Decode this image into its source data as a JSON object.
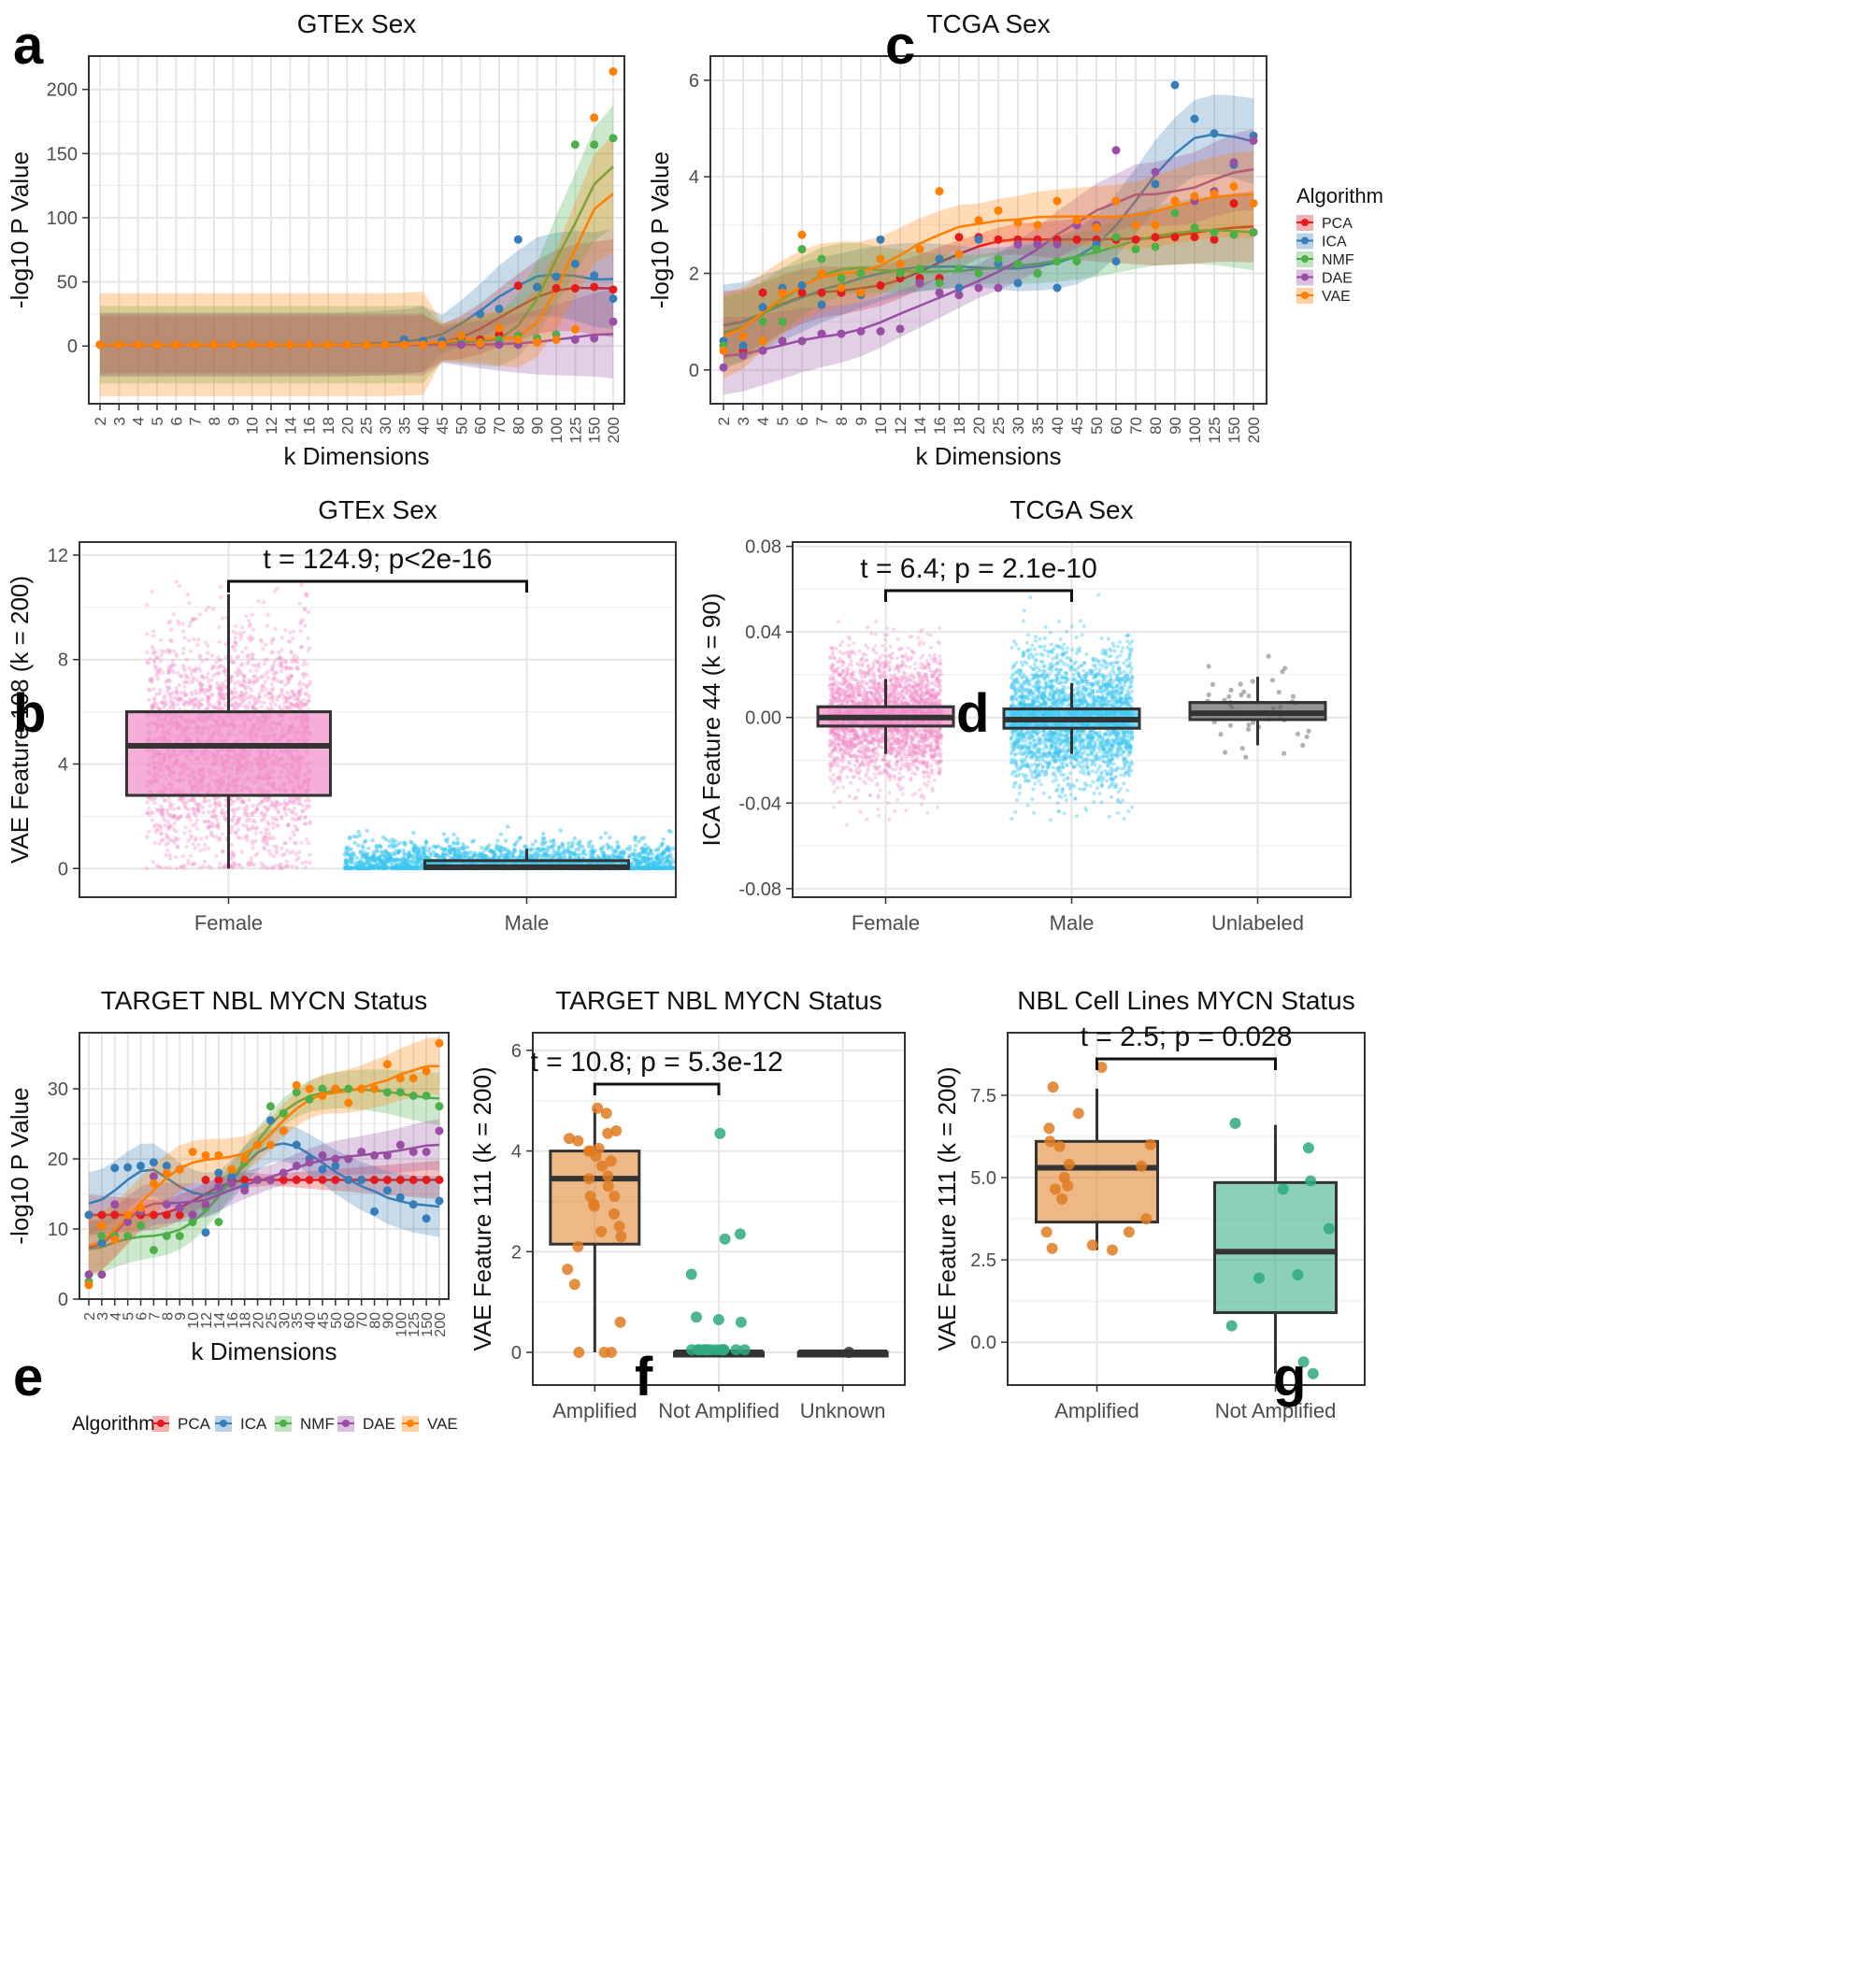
{
  "algorithms": [
    {
      "name": "PCA",
      "color": "#e41a1c"
    },
    {
      "name": "ICA",
      "color": "#377eb8"
    },
    {
      "name": "NMF",
      "color": "#4daf4a"
    },
    {
      "name": "DAE",
      "color": "#984ea3"
    },
    {
      "name": "VAE",
      "color": "#ff7f00"
    }
  ],
  "group_colors": {
    "female": "#f28cc9",
    "male": "#3cc6f0",
    "unlabeled": "#666666",
    "amplified": "#e07b22",
    "not_amplified": "#2ea982",
    "unknown": "#333333"
  },
  "panel_labels": {
    "a": "a",
    "b": "b",
    "c": "c",
    "d": "d",
    "e": "e",
    "f": "f",
    "g": "g"
  },
  "legend_title": "Algorithm",
  "chart_data": [
    {
      "id": "a",
      "type": "scatter",
      "title": "GTEx Sex",
      "xlabel": "k Dimensions",
      "ylabel": "-log10 P Value",
      "ylim": [
        -45,
        226
      ],
      "yticks": [
        0,
        50,
        100,
        150,
        200
      ],
      "grid": true,
      "categories": [
        "2",
        "3",
        "4",
        "5",
        "6",
        "7",
        "8",
        "9",
        "10",
        "12",
        "14",
        "16",
        "18",
        "20",
        "25",
        "30",
        "35",
        "40",
        "45",
        "50",
        "60",
        "70",
        "80",
        "90",
        "100",
        "125",
        "150",
        "200"
      ],
      "series": [
        {
          "name": "PCA",
          "values": [
            1,
            1,
            1,
            1,
            1,
            1,
            1,
            1,
            1,
            1,
            1,
            1,
            1,
            1,
            1,
            1,
            1,
            1,
            1,
            5,
            5,
            9,
            47,
            46,
            45,
            45,
            46,
            44
          ]
        },
        {
          "name": "ICA",
          "values": [
            1,
            1,
            1,
            1,
            1,
            1,
            1,
            1,
            1,
            1,
            1,
            1,
            1,
            1,
            1,
            1,
            5,
            4,
            4,
            8,
            25,
            29,
            83,
            46,
            54,
            64,
            55,
            37
          ]
        },
        {
          "name": "NMF",
          "values": [
            1,
            1,
            1,
            1,
            1,
            1,
            1,
            1,
            1,
            1,
            1,
            1,
            1,
            1,
            1,
            1,
            1,
            1,
            1,
            3,
            3,
            5,
            8,
            6,
            9,
            157,
            157,
            162
          ]
        },
        {
          "name": "DAE",
          "values": [
            1,
            1,
            1,
            1,
            1,
            1,
            1,
            1,
            1,
            1,
            1,
            1,
            1,
            1,
            1,
            1,
            1,
            1,
            1,
            1,
            1,
            1,
            1,
            3,
            5,
            5,
            6,
            19
          ]
        },
        {
          "name": "VAE",
          "values": [
            1,
            1,
            1,
            1,
            1,
            1,
            1,
            1,
            1,
            1,
            1,
            1,
            1,
            1,
            1,
            1,
            1,
            1,
            1,
            8,
            2,
            14,
            5,
            3,
            5,
            13,
            178,
            214
          ]
        }
      ]
    },
    {
      "id": "c",
      "type": "scatter",
      "title": "TCGA Sex",
      "xlabel": "k Dimensions",
      "ylabel": "-log10 P Value",
      "ylim": [
        -0.7,
        6.5
      ],
      "yticks": [
        0,
        2,
        4,
        6
      ],
      "grid": true,
      "categories": [
        "2",
        "3",
        "4",
        "5",
        "6",
        "7",
        "8",
        "9",
        "10",
        "12",
        "14",
        "16",
        "18",
        "20",
        "25",
        "30",
        "35",
        "40",
        "45",
        "50",
        "60",
        "70",
        "80",
        "90",
        "100",
        "125",
        "150",
        "200"
      ],
      "series": [
        {
          "name": "PCA",
          "values": [
            0.5,
            0.4,
            1.6,
            1.6,
            1.6,
            1.6,
            1.6,
            1.6,
            1.75,
            1.9,
            1.9,
            1.9,
            2.75,
            2.75,
            2.7,
            2.7,
            2.7,
            2.7,
            2.7,
            2.7,
            2.7,
            2.7,
            2.75,
            2.75,
            2.75,
            2.7,
            3.45,
            2.85
          ]
        },
        {
          "name": "ICA",
          "values": [
            0.6,
            0.5,
            1.3,
            1.7,
            1.75,
            1.35,
            1.7,
            1.55,
            2.7,
            2.2,
            1.8,
            2.3,
            1.7,
            2.7,
            2.2,
            1.8,
            2.0,
            1.7,
            3.0,
            2.6,
            2.25,
            3.0,
            3.85,
            5.9,
            5.2,
            4.9,
            4.25,
            4.85
          ]
        },
        {
          "name": "NMF",
          "values": [
            0.5,
            0.7,
            1.0,
            1.0,
            2.5,
            2.3,
            1.9,
            2.0,
            2.3,
            2.0,
            2.1,
            1.8,
            2.1,
            2.0,
            2.3,
            2.2,
            2.0,
            2.25,
            2.25,
            2.5,
            2.75,
            2.5,
            2.55,
            3.25,
            2.95,
            2.85,
            2.8,
            2.85
          ]
        },
        {
          "name": "DAE",
          "values": [
            0.05,
            0.3,
            0.4,
            0.6,
            0.6,
            0.75,
            0.75,
            0.8,
            0.8,
            0.85,
            1.8,
            1.6,
            1.55,
            1.7,
            1.7,
            2.6,
            2.6,
            2.6,
            3.0,
            3.0,
            4.55,
            3.0,
            4.1,
            3.5,
            3.5,
            3.7,
            4.3,
            4.75
          ]
        },
        {
          "name": "VAE",
          "values": [
            0.4,
            0.7,
            0.6,
            1.6,
            2.8,
            2.0,
            1.7,
            1.6,
            2.3,
            2.2,
            2.5,
            3.7,
            2.4,
            3.1,
            3.3,
            3.05,
            3.0,
            3.5,
            3.1,
            2.95,
            3.5,
            3.0,
            3.0,
            3.5,
            3.6,
            3.65,
            3.8,
            3.45
          ]
        }
      ]
    },
    {
      "id": "b",
      "type": "box",
      "title": "GTEx Sex",
      "ylabel": "VAE Feature 108 (k = 200)",
      "categories": [
        "Female",
        "Male"
      ],
      "ylim": [
        -1.1,
        12.5
      ],
      "yticks": [
        0,
        4,
        8,
        12
      ],
      "grid": true,
      "boxes": [
        {
          "group": "Female",
          "min": 0,
          "q1": 2.8,
          "median": 4.7,
          "q3": 6.0,
          "max": 10.5,
          "point_max": 11.0
        },
        {
          "group": "Male",
          "min": 0,
          "q1": 0,
          "median": 0.05,
          "q3": 0.3,
          "max": 0.75,
          "point_max": 3.1
        }
      ],
      "annotation": "t = 124.9; p<2e-16"
    },
    {
      "id": "d",
      "type": "box",
      "title": "TCGA Sex",
      "ylabel": "ICA Feature 44 (k = 90)",
      "categories": [
        "Female",
        "Male",
        "Unlabeled"
      ],
      "ylim": [
        -0.084,
        0.082
      ],
      "yticks": [
        -0.08,
        -0.04,
        0.0,
        0.04,
        0.08
      ],
      "yticklabels": [
        "-0.08",
        "-0.04",
        "0.00",
        "0.04",
        "0.08"
      ],
      "grid": true,
      "boxes": [
        {
          "group": "Female",
          "min": -0.017,
          "q1": -0.004,
          "median": 0.0,
          "q3": 0.005,
          "max": 0.018,
          "point_min": -0.06,
          "point_max": 0.053
        },
        {
          "group": "Male",
          "min": -0.017,
          "q1": -0.005,
          "median": -0.001,
          "q3": 0.004,
          "max": 0.016,
          "point_min": -0.048,
          "point_max": 0.06
        },
        {
          "group": "Unlabeled",
          "min": -0.013,
          "q1": -0.001,
          "median": 0.002,
          "q3": 0.007,
          "max": 0.019,
          "point_min": -0.019,
          "point_max": 0.036
        }
      ],
      "annotation": "t = 6.4; p = 2.1e-10"
    },
    {
      "id": "e",
      "type": "scatter",
      "title": "TARGET NBL MYCN Status",
      "xlabel": "k Dimensions",
      "ylabel": "-log10 P Value",
      "ylim": [
        0,
        38
      ],
      "yticks": [
        0,
        10,
        20,
        30
      ],
      "grid": true,
      "categories": [
        "2",
        "3",
        "4",
        "5",
        "6",
        "7",
        "8",
        "9",
        "10",
        "12",
        "14",
        "16",
        "18",
        "20",
        "25",
        "30",
        "35",
        "40",
        "45",
        "50",
        "60",
        "70",
        "80",
        "90",
        "100",
        "125",
        "150",
        "200"
      ],
      "series": [
        {
          "name": "PCA",
          "values": [
            12,
            12,
            12,
            12,
            12,
            12,
            12,
            12,
            12,
            17,
            17,
            17,
            17,
            17,
            17,
            17,
            17,
            17,
            17,
            17,
            17,
            17,
            17,
            17,
            17,
            17,
            17,
            17
          ]
        },
        {
          "name": "ICA",
          "values": [
            12,
            8,
            18.7,
            18.8,
            19,
            19.5,
            19,
            18.5,
            11,
            9.5,
            18,
            17.5,
            16,
            22,
            25.5,
            24,
            22,
            20,
            18.5,
            19,
            17,
            17,
            12.5,
            15.5,
            14.5,
            13.5,
            11.5,
            14
          ]
        },
        {
          "name": "NMF",
          "values": [
            2.5,
            9,
            9,
            9,
            10.5,
            7,
            9,
            9,
            11,
            13,
            11,
            18.5,
            19.5,
            22,
            27.5,
            26.5,
            29.5,
            28.5,
            30,
            30,
            30,
            30,
            30,
            29.5,
            29.5,
            29,
            29,
            27.5
          ]
        },
        {
          "name": "DAE",
          "values": [
            3.5,
            3.5,
            13.5,
            11,
            12.5,
            17.5,
            13.5,
            13,
            12,
            13.5,
            16,
            16.5,
            15.5,
            17,
            17,
            18,
            19,
            19.5,
            20.5,
            20,
            20,
            21,
            20.5,
            20.5,
            22,
            21,
            21,
            24
          ]
        },
        {
          "name": "VAE",
          "values": [
            2,
            10.5,
            8.5,
            12,
            13,
            16.5,
            18,
            18.5,
            21,
            20.5,
            20.5,
            18.5,
            20,
            22,
            22,
            24,
            30.5,
            30,
            29,
            30,
            28,
            30,
            30,
            33.5,
            31.5,
            31.5,
            32.5,
            36.5
          ]
        }
      ]
    },
    {
      "id": "f",
      "type": "box",
      "title": "TARGET NBL MYCN Status",
      "ylabel": "VAE Feature 111 (k = 200)",
      "categories": [
        "Amplified",
        "Not Amplified",
        "Unknown"
      ],
      "ylim": [
        -0.65,
        6.35
      ],
      "yticks": [
        0,
        2,
        4,
        6
      ],
      "grid": true,
      "boxes": [
        {
          "group": "Amplified",
          "min": 0,
          "q1": 2.15,
          "median": 3.45,
          "q3": 4.0,
          "max": 4.85
        },
        {
          "group": "Not Amplified",
          "min": 0,
          "q1": 0,
          "median": 0,
          "q3": 0,
          "max": 0
        },
        {
          "group": "Unknown",
          "min": 0,
          "q1": 0,
          "median": 0,
          "q3": 0,
          "max": 0
        }
      ],
      "points": [
        {
          "group": "Amplified",
          "values": [
            4.85,
            4.75,
            4.4,
            4.35,
            4.25,
            4.2,
            4.05,
            4.0,
            4.0,
            3.9,
            3.8,
            3.7,
            3.5,
            3.45,
            3.3,
            3.1,
            3.1,
            2.95,
            2.9,
            2.75,
            2.5,
            2.4,
            2.3,
            2.1,
            1.65,
            1.35,
            0.6,
            0,
            0,
            0
          ]
        },
        {
          "group": "Not Amplified",
          "values": [
            4.35,
            2.35,
            2.25,
            1.55,
            0.7,
            0.65,
            0.6,
            0.05,
            0.05,
            0.05,
            0.05,
            0.05,
            0.05,
            0.05,
            0.05,
            0.05,
            0.05,
            0.05,
            0.05,
            0.05
          ]
        },
        {
          "group": "Unknown",
          "values": [
            0
          ]
        }
      ],
      "annotation": "t = 10.8; p = 5.3e-12"
    },
    {
      "id": "g",
      "type": "box",
      "title": "NBL Cell Lines MYCN Status",
      "ylabel": "VAE Feature 111 (k = 200)",
      "categories": [
        "Amplified",
        "Not Amplified"
      ],
      "ylim": [
        -1.3,
        9.4
      ],
      "yticks": [
        0,
        2.5,
        5,
        7.5
      ],
      "yticklabels": [
        "0.0",
        "2.5",
        "5.0",
        "7.5"
      ],
      "grid": true,
      "boxes": [
        {
          "group": "Amplified",
          "min": 2.8,
          "q1": 3.65,
          "median": 5.3,
          "q3": 6.1,
          "max": 7.7
        },
        {
          "group": "Not Amplified",
          "min": -0.95,
          "q1": 0.9,
          "median": 2.75,
          "q3": 4.85,
          "max": 6.6
        }
      ],
      "points": [
        {
          "group": "Amplified",
          "values": [
            8.35,
            7.75,
            6.95,
            6.5,
            6.1,
            6.0,
            5.95,
            5.4,
            5.35,
            5.0,
            4.75,
            4.65,
            4.35,
            3.75,
            3.35,
            3.35,
            2.95,
            2.85,
            2.8
          ]
        },
        {
          "group": "Not Amplified",
          "values": [
            6.65,
            5.9,
            4.9,
            4.65,
            3.45,
            2.05,
            1.95,
            0.5,
            -0.6,
            -0.95
          ]
        }
      ],
      "annotation": "t = 2.5; p = 0.028"
    }
  ]
}
